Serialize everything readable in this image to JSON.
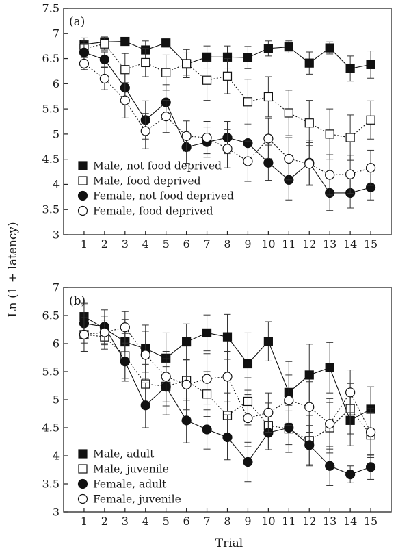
{
  "figure": {
    "ylabel": "Ln (1 + latency)",
    "xlabel": "Trial"
  },
  "chart_data": [
    {
      "type": "line",
      "panel_label": "(a)",
      "x": [
        1,
        2,
        3,
        4,
        5,
        6,
        7,
        8,
        9,
        10,
        11,
        12,
        13,
        14,
        15
      ],
      "xticks": [
        1,
        2,
        3,
        4,
        5,
        6,
        7,
        8,
        9,
        10,
        11,
        12,
        13,
        14,
        15
      ],
      "xlim": [
        0,
        16
      ],
      "ylim": [
        3,
        7.5
      ],
      "yticks": [
        3,
        3.5,
        4,
        4.5,
        5,
        5.5,
        6,
        6.5,
        7,
        7.5
      ],
      "legend_position": "lower-left",
      "grid": false,
      "series": [
        {
          "name": "Male, not food deprived",
          "marker": "filled-square",
          "line": "solid",
          "values": [
            6.78,
            6.83,
            6.84,
            6.67,
            6.81,
            6.39,
            6.53,
            6.53,
            6.52,
            6.7,
            6.73,
            6.41,
            6.71,
            6.3,
            6.38
          ],
          "errors": [
            0.13,
            0.1,
            0.06,
            0.18,
            0.08,
            0.22,
            0.22,
            0.22,
            0.22,
            0.15,
            0.12,
            0.22,
            0.12,
            0.25,
            0.27
          ]
        },
        {
          "name": "Male, food deprived",
          "marker": "open-square",
          "line": "dotted",
          "values": [
            6.7,
            6.79,
            6.28,
            6.42,
            6.22,
            6.4,
            6.07,
            6.15,
            5.64,
            5.74,
            5.42,
            5.22,
            5.0,
            4.93,
            5.28
          ],
          "errors": [
            0.15,
            0.12,
            0.32,
            0.28,
            0.35,
            0.28,
            0.4,
            0.35,
            0.45,
            0.4,
            0.45,
            0.45,
            0.5,
            0.45,
            0.38
          ]
        },
        {
          "name": "Female, not food deprived",
          "marker": "filled-circle",
          "line": "solid",
          "values": [
            6.62,
            6.48,
            5.92,
            5.28,
            5.63,
            4.74,
            4.84,
            4.93,
            4.82,
            4.43,
            4.09,
            4.43,
            3.83,
            3.83,
            3.94
          ],
          "errors": [
            0.18,
            0.15,
            0.28,
            0.38,
            0.35,
            0.32,
            0.3,
            0.32,
            0.4,
            0.35,
            0.4,
            0.45,
            0.35,
            0.3,
            0.25
          ]
        },
        {
          "name": "Female, food deprived",
          "marker": "open-circle",
          "line": "dotted",
          "values": [
            6.4,
            6.1,
            5.67,
            5.06,
            5.35,
            4.96,
            4.93,
            4.71,
            4.46,
            4.91,
            4.51,
            4.41,
            4.19,
            4.2,
            4.33
          ],
          "errors": [
            0.12,
            0.22,
            0.35,
            0.35,
            0.32,
            0.3,
            0.32,
            0.38,
            0.4,
            0.4,
            0.42,
            0.42,
            0.4,
            0.38,
            0.35
          ]
        }
      ]
    },
    {
      "type": "line",
      "panel_label": "(b)",
      "x": [
        1,
        2,
        3,
        4,
        5,
        6,
        7,
        8,
        9,
        10,
        11,
        12,
        13,
        14,
        15
      ],
      "xticks": [
        1,
        2,
        3,
        4,
        5,
        6,
        7,
        8,
        9,
        10,
        11,
        12,
        13,
        14,
        15
      ],
      "xlim": [
        0,
        16
      ],
      "ylim": [
        3,
        7
      ],
      "yticks": [
        3,
        3.5,
        4,
        4.5,
        5,
        5.5,
        6,
        6.5,
        7
      ],
      "legend_position": "lower-left",
      "grid": false,
      "series": [
        {
          "name": "Male, adult",
          "marker": "filled-square",
          "line": "solid",
          "values": [
            6.48,
            6.27,
            6.03,
            5.91,
            5.74,
            6.03,
            6.19,
            6.12,
            5.64,
            6.04,
            5.13,
            5.44,
            5.57,
            4.63,
            4.83
          ],
          "errors": [
            0.25,
            0.22,
            0.4,
            0.42,
            0.45,
            0.32,
            0.32,
            0.4,
            0.55,
            0.35,
            0.55,
            0.55,
            0.45,
            0.45,
            0.4
          ]
        },
        {
          "name": "Male, juvenile",
          "marker": "open-square",
          "line": "dotted",
          "values": [
            6.16,
            6.12,
            5.78,
            5.28,
            5.24,
            5.34,
            5.1,
            4.72,
            4.97,
            4.54,
            4.48,
            4.27,
            4.5,
            4.84,
            4.37
          ],
          "errors": [
            0.3,
            0.22,
            0.4,
            0.35,
            0.35,
            0.35,
            0.4,
            0.4,
            0.42,
            0.4,
            0.42,
            0.45,
            0.45,
            0.45,
            0.4
          ]
        },
        {
          "name": "Female, adult",
          "marker": "filled-circle",
          "line": "solid",
          "values": [
            6.36,
            6.3,
            5.68,
            4.9,
            5.23,
            4.63,
            4.47,
            4.33,
            3.89,
            4.41,
            4.5,
            4.19,
            3.82,
            3.67,
            3.8
          ],
          "errors": [
            0.35,
            0.3,
            0.35,
            0.4,
            0.5,
            0.4,
            0.35,
            0.4,
            0.35,
            0.3,
            0.3,
            0.35,
            0.35,
            0.15,
            0.22
          ]
        },
        {
          "name": "Female, juvenile",
          "marker": "open-circle",
          "line": "dotted",
          "values": [
            6.16,
            6.2,
            6.29,
            5.8,
            5.41,
            5.27,
            5.37,
            5.41,
            4.67,
            4.77,
            4.99,
            4.87,
            4.57,
            5.13,
            4.42
          ],
          "errors": [
            0.3,
            0.22,
            0.28,
            0.42,
            0.45,
            0.45,
            0.45,
            0.45,
            0.5,
            0.35,
            0.45,
            0.45,
            0.45,
            0.4,
            0.42
          ]
        }
      ]
    }
  ]
}
